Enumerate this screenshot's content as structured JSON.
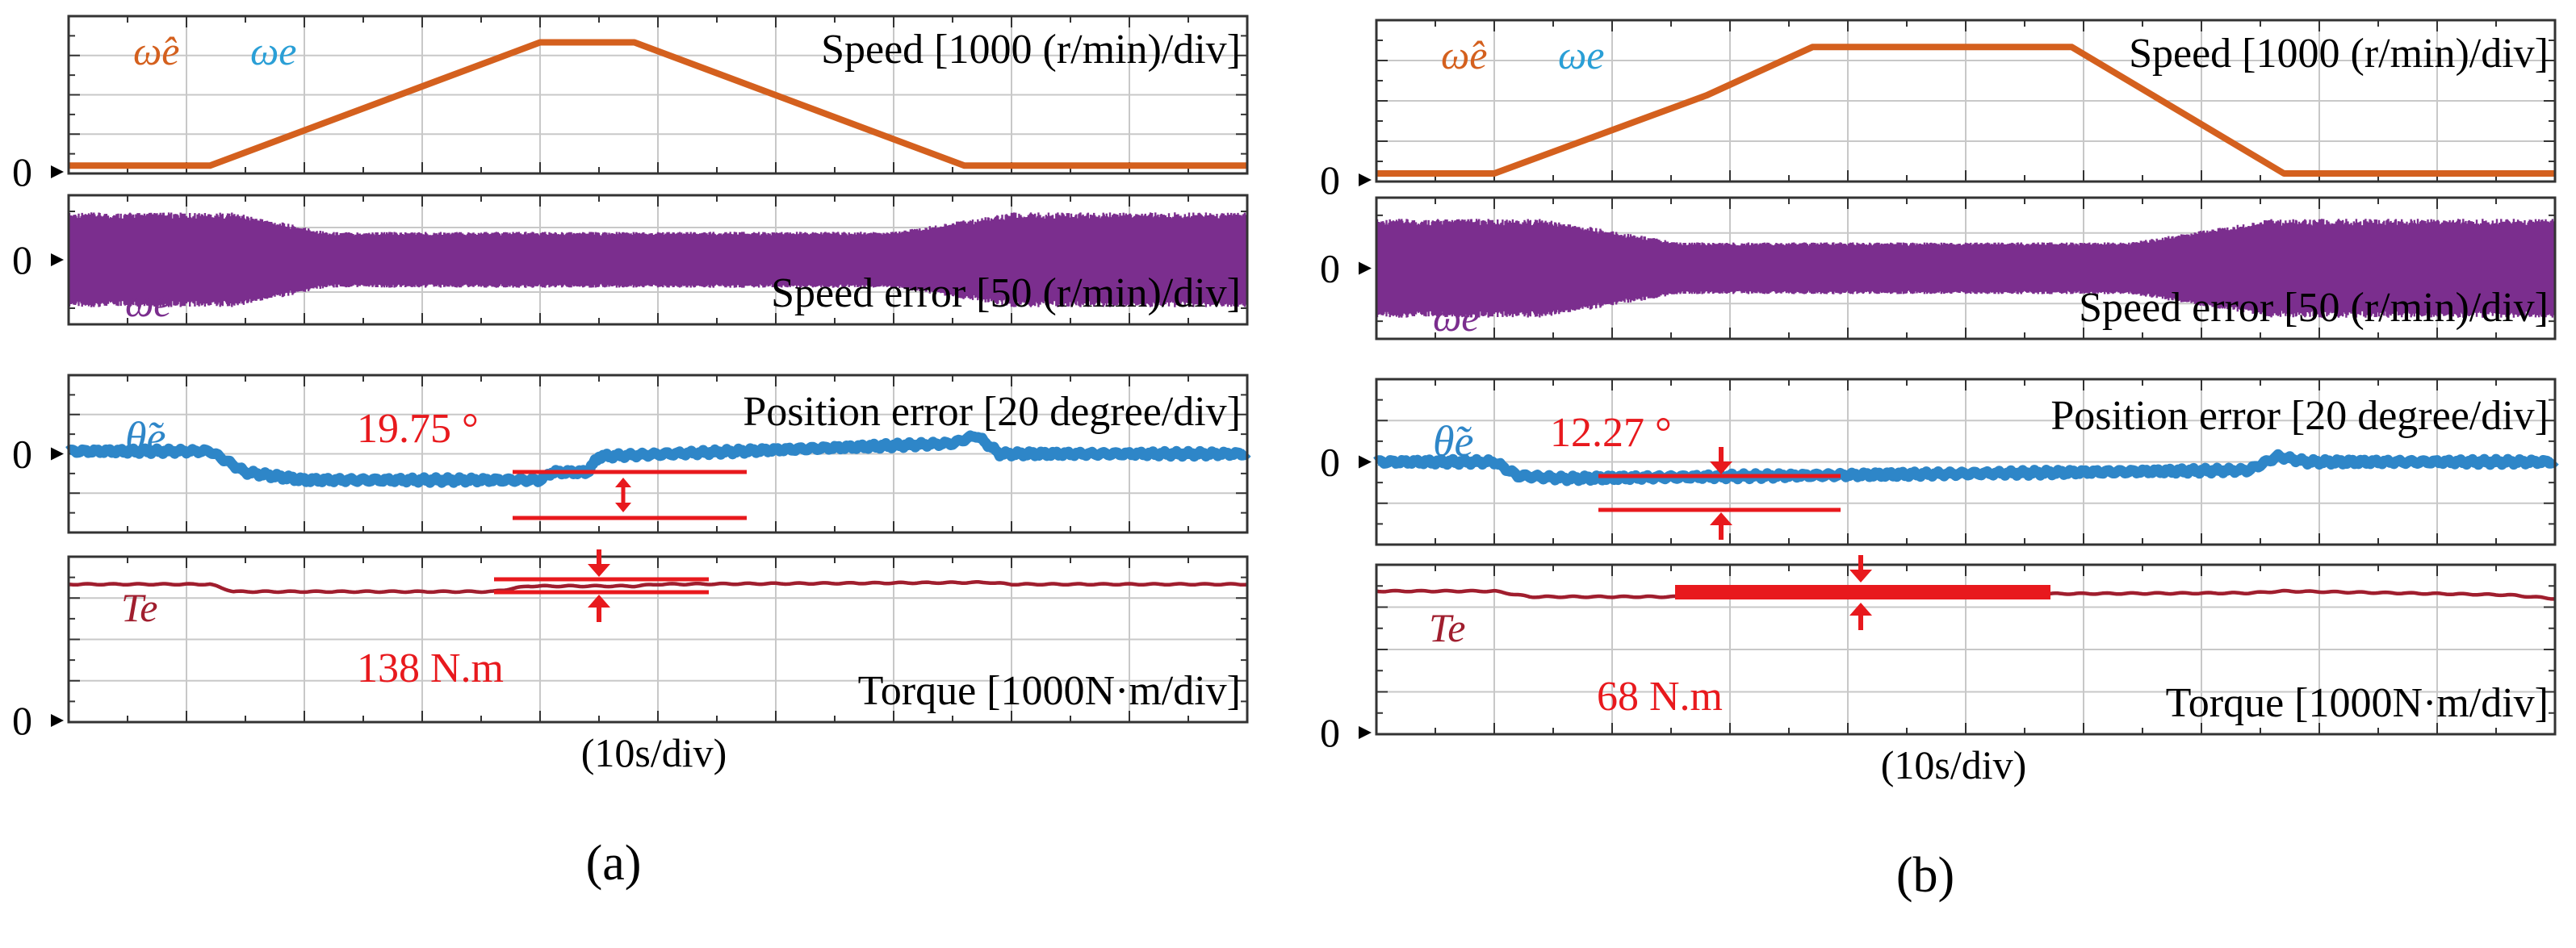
{
  "figure": {
    "time_axis_label": "(10s/div)",
    "divisions": 10
  },
  "colors": {
    "speed": "#D4601E",
    "speed_label_est": "#D4601E",
    "speed_label_act": "#2A9FD6",
    "speed_error": "#7B2E8E",
    "position_error": "#2E86C8",
    "torque": "#A01E2E",
    "annotation": "#E8191D",
    "grid": "#c8c8c8",
    "frame": "#333333"
  },
  "chart_data": [
    {
      "type": "line",
      "panel": "a",
      "caption": "(a)",
      "x_label": "(10s/div)",
      "x_range": [
        0,
        10
      ],
      "subplots": [
        {
          "name": "speed",
          "title": "Speed [1000 (r/min)/div]",
          "legend": [
            "ω̂e",
            "ωe"
          ],
          "zero_label": "0",
          "ylim": [
            0,
            3
          ],
          "x": [
            0,
            1.2,
            4.0,
            4.8,
            7.6,
            10
          ],
          "y": [
            0.15,
            0.15,
            2.5,
            2.5,
            0.15,
            0.15
          ]
        },
        {
          "name": "speed_error",
          "title": "Speed error [50 (r/min)/div]",
          "legend": [
            "ωe"
          ],
          "zero_label": "0",
          "ylim": [
            -1.5,
            1.5
          ],
          "x": [
            0,
            1.4,
            2.2,
            7.0,
            8.0,
            10
          ],
          "amplitude": [
            1.1,
            1.1,
            0.65,
            0.65,
            1.1,
            1.1
          ]
        },
        {
          "name": "position_error",
          "title": "Position error [20 degree/div]",
          "legend": [
            "θ̃e"
          ],
          "zero_label": "0",
          "annotation_value": "19.75 °",
          "ylim": [
            -1.5,
            1.5
          ],
          "x": [
            0,
            1.2,
            1.5,
            2.0,
            4.0,
            4.1,
            4.4,
            4.5,
            7.5,
            7.7,
            7.9,
            10
          ],
          "y": [
            0.05,
            0.05,
            -0.35,
            -0.5,
            -0.5,
            -0.35,
            -0.35,
            -0.05,
            0.2,
            0.35,
            0.0,
            0.0
          ]
        },
        {
          "name": "torque",
          "title": "Torque [1000N·m/div]",
          "legend": [
            "Te"
          ],
          "zero_label": "0",
          "annotation_value": "138 N.m",
          "ylim": [
            0,
            0.9
          ],
          "x": [
            0,
            1.2,
            1.4,
            3.6,
            3.9,
            4.8,
            5.0,
            7.8,
            8.0,
            10
          ],
          "y": [
            0.75,
            0.75,
            0.71,
            0.71,
            0.74,
            0.74,
            0.75,
            0.76,
            0.75,
            0.75
          ]
        }
      ]
    },
    {
      "type": "line",
      "panel": "b",
      "caption": "(b)",
      "x_label": "(10s/div)",
      "x_range": [
        0,
        10
      ],
      "subplots": [
        {
          "name": "speed",
          "title": "Speed [1000 (r/min)/div]",
          "legend": [
            "ω̂e",
            "ωe"
          ],
          "zero_label": "0",
          "ylim": [
            0,
            3
          ],
          "x": [
            0,
            1.0,
            2.8,
            3.7,
            5.9,
            7.7,
            10
          ],
          "y": [
            0.15,
            0.15,
            1.6,
            2.5,
            2.5,
            0.15,
            0.15
          ]
        },
        {
          "name": "speed_error",
          "title": "Speed error [50 (r/min)/div]",
          "legend": [
            "ωe"
          ],
          "zero_label": "0",
          "ylim": [
            -1.5,
            1.5
          ],
          "x": [
            0,
            1.4,
            2.6,
            6.4,
            7.6,
            10
          ],
          "amplitude": [
            1.05,
            1.05,
            0.55,
            0.55,
            1.05,
            1.05
          ]
        },
        {
          "name": "position_error",
          "title": "Position error [20 degree/div]",
          "legend": [
            "θ̃e"
          ],
          "zero_label": "0",
          "annotation_value": "12.27 °",
          "ylim": [
            -1.5,
            1.5
          ],
          "x": [
            0,
            1.0,
            1.2,
            1.6,
            7.4,
            7.65,
            7.9,
            10
          ],
          "y": [
            0.0,
            0.0,
            -0.25,
            -0.3,
            -0.15,
            0.1,
            0.0,
            0.0
          ]
        },
        {
          "name": "torque",
          "title": "Torque [1000N·m/div]",
          "legend": [
            "Te"
          ],
          "zero_label": "0",
          "annotation_value": "68 N.m",
          "ylim": [
            0,
            0.9
          ],
          "x": [
            0,
            1.0,
            1.3,
            3.0,
            3.3,
            7.4,
            7.7,
            9.6,
            10
          ],
          "y": [
            0.76,
            0.76,
            0.73,
            0.73,
            0.74,
            0.75,
            0.76,
            0.74,
            0.72
          ]
        }
      ]
    }
  ]
}
